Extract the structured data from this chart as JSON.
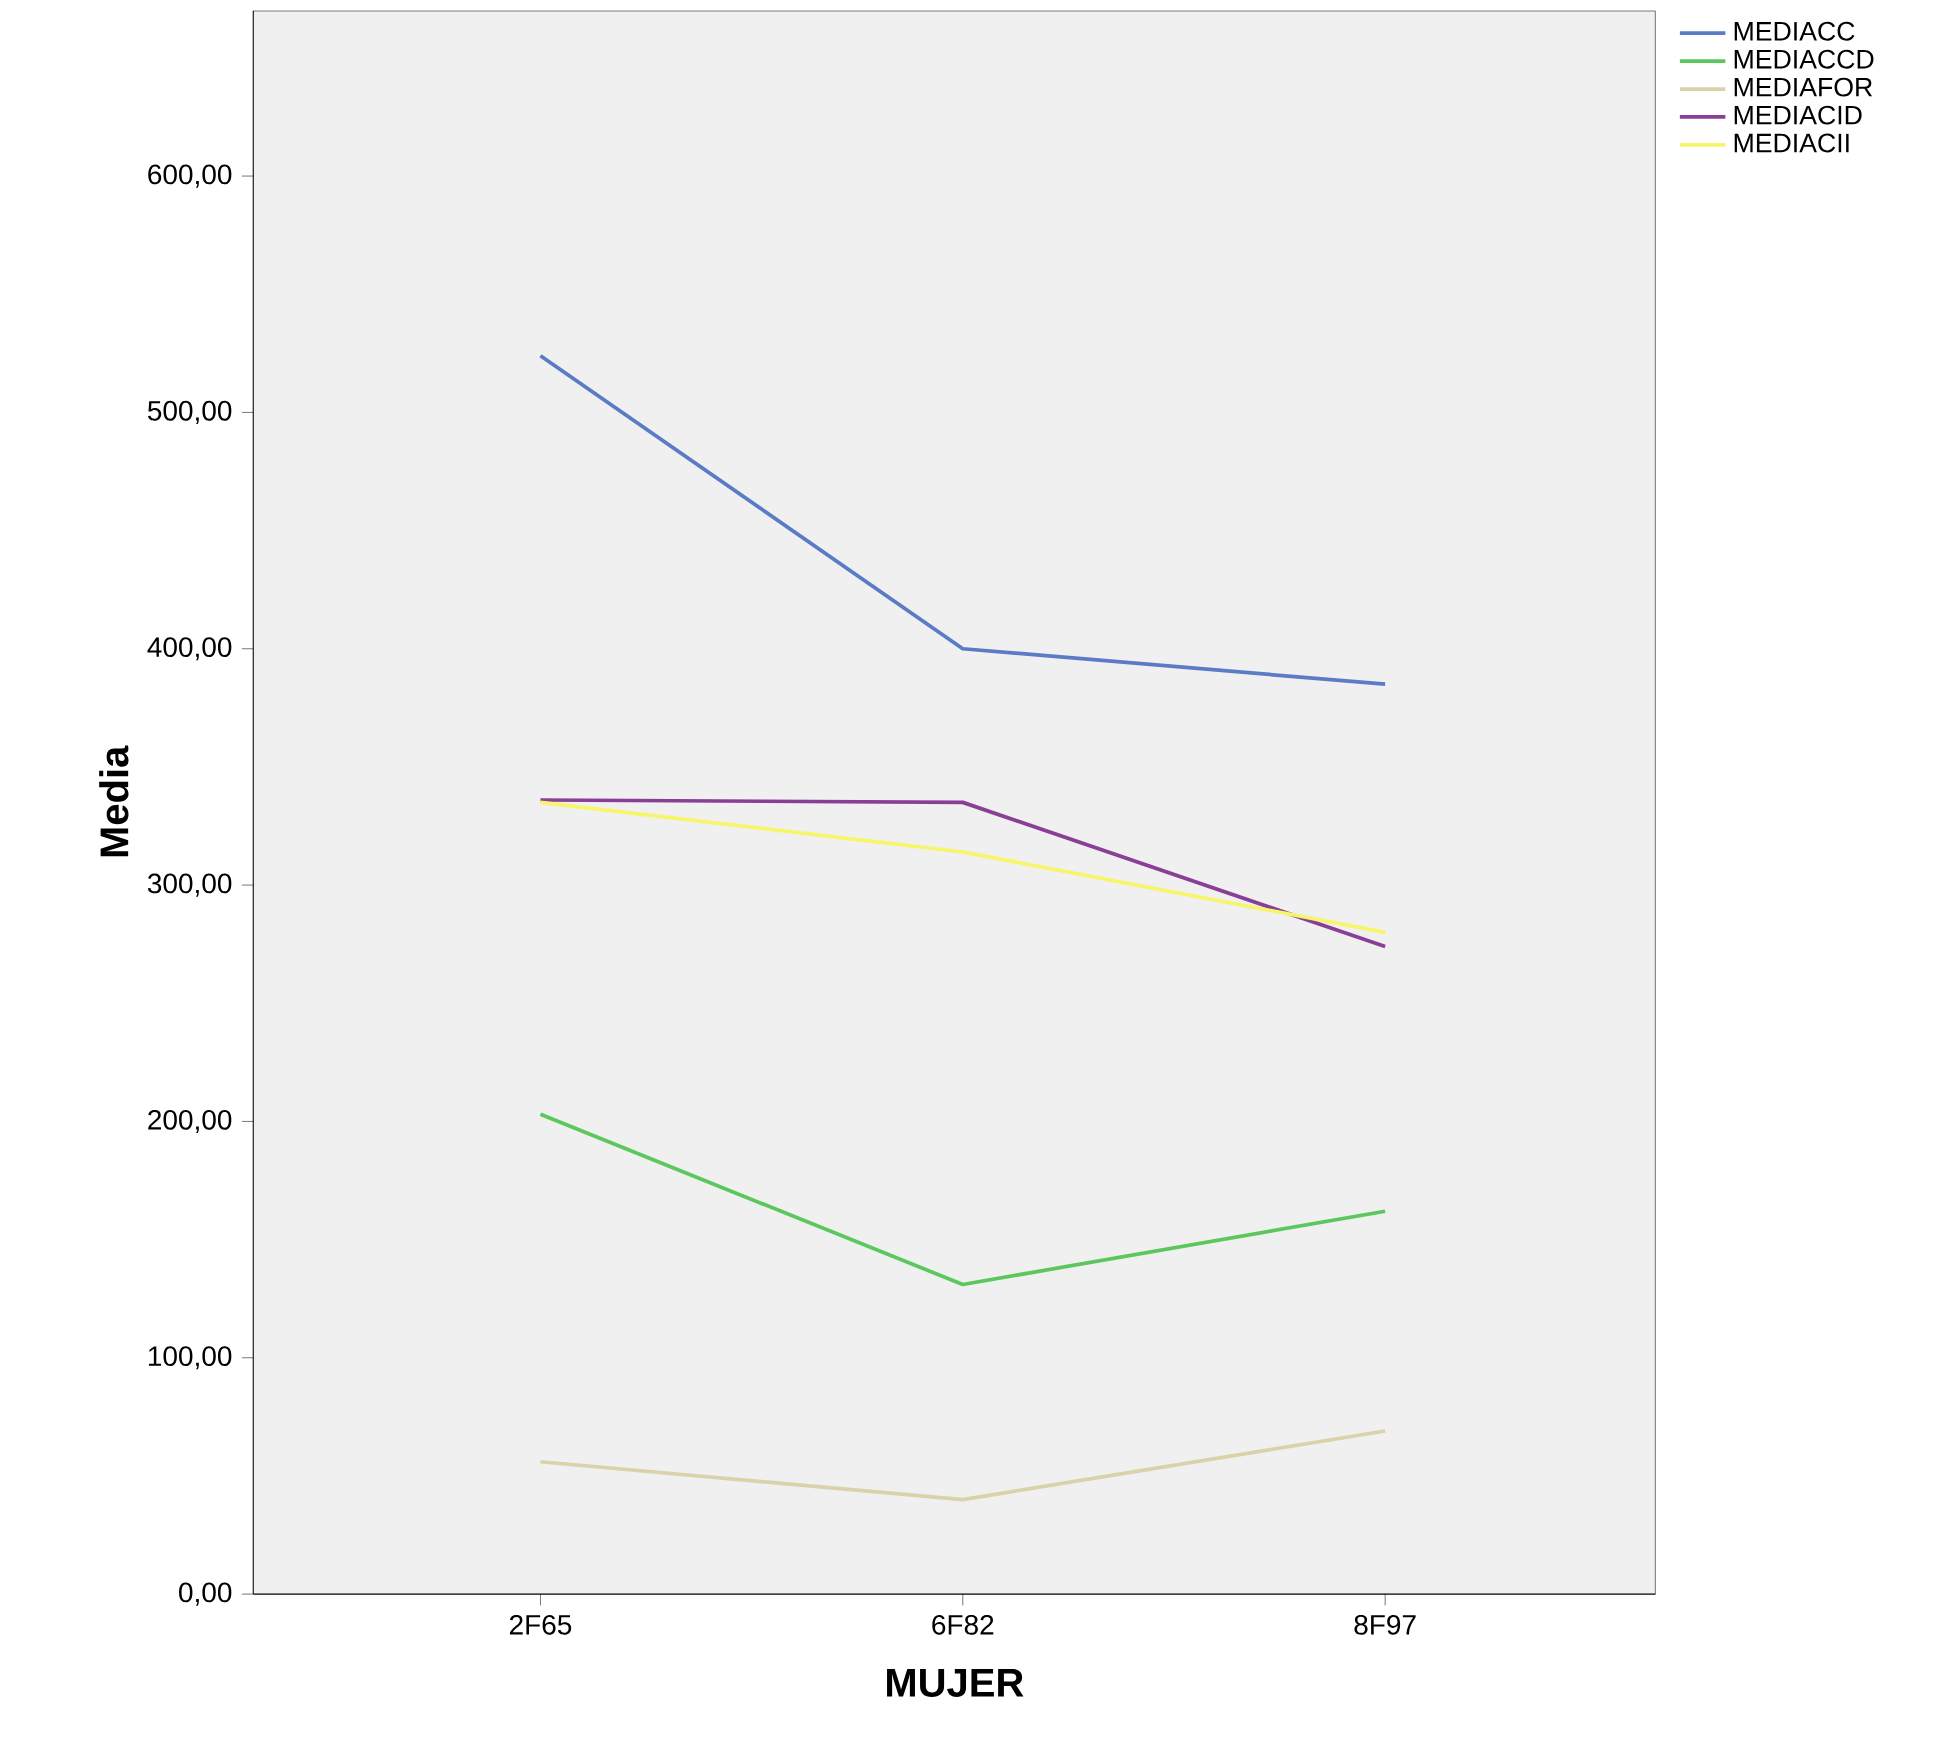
{
  "chart_data": {
    "type": "line",
    "xlabel": "MUJER",
    "ylabel": "Media",
    "categories": [
      "2F65",
      "6F82",
      "8F97"
    ],
    "series": [
      {
        "name": "MEDIACC",
        "color": "#5b7bc6",
        "values": [
          524,
          400,
          385
        ]
      },
      {
        "name": "MEDIACCD",
        "color": "#5cc75c",
        "values": [
          203,
          131,
          162
        ]
      },
      {
        "name": "MEDIAFOR",
        "color": "#d8d3a8",
        "values": [
          56,
          40,
          69
        ]
      },
      {
        "name": "MEDIACID",
        "color": "#8a3f96",
        "values": [
          336,
          335,
          274
        ]
      },
      {
        "name": "MEDIACII",
        "color": "#f7f56a",
        "values": [
          335,
          314,
          280
        ]
      }
    ],
    "ylim": [
      0,
      670
    ],
    "yticks": [
      {
        "value": 0,
        "label": "0,00"
      },
      {
        "value": 100,
        "label": "100,00"
      },
      {
        "value": 200,
        "label": "200,00"
      },
      {
        "value": 300,
        "label": "300,00"
      },
      {
        "value": 400,
        "label": "400,00"
      },
      {
        "value": 500,
        "label": "500,00"
      },
      {
        "value": 600,
        "label": "600,00"
      }
    ],
    "grid": false,
    "legend": "top right"
  }
}
